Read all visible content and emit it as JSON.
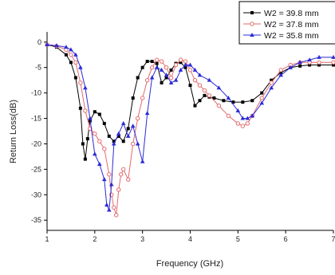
{
  "chart_data": {
    "type": "line",
    "title": "",
    "xlabel": "Frequency (GHz)",
    "ylabel": "Return Loss(dB)",
    "xlim": [
      1,
      7
    ],
    "ylim": [
      -37,
      2
    ],
    "x_ticks": [
      1,
      2,
      3,
      4,
      5,
      6,
      7
    ],
    "x_tick_labels": [
      "1",
      "2",
      "3",
      "4",
      "5",
      "6",
      "7"
    ],
    "y_ticks": [
      0,
      -5,
      -10,
      -15,
      -20,
      -25,
      -30,
      -35
    ],
    "y_tick_labels": [
      "0",
      "-5",
      "-10",
      "-15",
      "-20",
      "-25",
      "-30",
      "-35"
    ],
    "grid": false,
    "legend_position": "top-right",
    "series": [
      {
        "name": "W2 = 39.8 mm",
        "color": "#000000",
        "marker": "square-filled",
        "x": [
          1.0,
          1.2,
          1.4,
          1.5,
          1.6,
          1.7,
          1.75,
          1.8,
          1.85,
          1.9,
          2.0,
          2.1,
          2.2,
          2.3,
          2.4,
          2.5,
          2.6,
          2.7,
          2.8,
          2.9,
          3.0,
          3.1,
          3.2,
          3.3,
          3.4,
          3.5,
          3.6,
          3.7,
          3.8,
          3.9,
          4.0,
          4.1,
          4.2,
          4.3,
          4.4,
          4.5,
          4.7,
          4.9,
          5.1,
          5.3,
          5.5,
          5.7,
          5.9,
          6.1,
          6.3,
          6.5,
          6.7,
          7.0
        ],
        "y": [
          -0.5,
          -1.0,
          -2.5,
          -4.0,
          -7.0,
          -13.0,
          -20.0,
          -23.0,
          -19.0,
          -15.5,
          -13.7,
          -14.2,
          -16.0,
          -18.5,
          -19.5,
          -18.5,
          -19.5,
          -17.0,
          -11.0,
          -7.0,
          -5.0,
          -3.8,
          -3.8,
          -4.2,
          -8.0,
          -7.0,
          -5.5,
          -4.2,
          -4.0,
          -5.0,
          -8.5,
          -12.5,
          -11.5,
          -10.5,
          -10.8,
          -11.0,
          -11.5,
          -11.8,
          -11.8,
          -11.5,
          -10.0,
          -7.5,
          -6.0,
          -5.0,
          -4.7,
          -4.5,
          -4.5,
          -4.5
        ]
      },
      {
        "name": "W2 = 37.8 mm",
        "color": "#e36b6b",
        "marker": "circle-open",
        "x": [
          1.0,
          1.2,
          1.4,
          1.5,
          1.6,
          1.7,
          1.8,
          1.9,
          2.0,
          2.1,
          2.2,
          2.3,
          2.35,
          2.4,
          2.45,
          2.5,
          2.55,
          2.6,
          2.7,
          2.8,
          2.9,
          3.0,
          3.1,
          3.2,
          3.3,
          3.4,
          3.5,
          3.6,
          3.7,
          3.8,
          3.9,
          4.0,
          4.1,
          4.2,
          4.3,
          4.4,
          4.6,
          4.8,
          5.0,
          5.1,
          5.2,
          5.3,
          5.5,
          5.7,
          5.9,
          6.1,
          6.3,
          6.5,
          6.7,
          7.0
        ],
        "y": [
          -0.5,
          -0.8,
          -1.5,
          -2.5,
          -4.0,
          -8.0,
          -13.5,
          -17.0,
          -18.0,
          -19.5,
          -21.0,
          -26.0,
          -30.0,
          -32.5,
          -34.0,
          -29.0,
          -26.0,
          -25.0,
          -27.0,
          -20.0,
          -15.0,
          -11.0,
          -7.5,
          -5.0,
          -3.5,
          -3.8,
          -5.0,
          -7.0,
          -4.5,
          -3.5,
          -3.8,
          -5.5,
          -7.5,
          -8.5,
          -9.5,
          -10.5,
          -12.5,
          -14.5,
          -16.0,
          -16.5,
          -16.0,
          -14.5,
          -11.0,
          -8.0,
          -5.5,
          -4.5,
          -4.0,
          -4.0,
          -4.0,
          -4.0
        ]
      },
      {
        "name": "W2 = 35.8 mm",
        "color": "#2b2bd6",
        "marker": "triangle-filled",
        "x": [
          1.0,
          1.2,
          1.4,
          1.5,
          1.6,
          1.7,
          1.8,
          1.9,
          2.0,
          2.1,
          2.2,
          2.25,
          2.3,
          2.35,
          2.4,
          2.5,
          2.6,
          2.7,
          2.8,
          2.9,
          3.0,
          3.1,
          3.2,
          3.3,
          3.4,
          3.5,
          3.6,
          3.7,
          3.8,
          3.9,
          4.0,
          4.1,
          4.2,
          4.4,
          4.6,
          4.8,
          5.0,
          5.1,
          5.2,
          5.3,
          5.5,
          5.7,
          5.9,
          6.1,
          6.3,
          6.5,
          6.7,
          7.0
        ],
        "y": [
          -0.5,
          -0.7,
          -1.0,
          -1.5,
          -2.5,
          -5.0,
          -9.0,
          -15.0,
          -22.0,
          -24.0,
          -27.0,
          -32.0,
          -33.0,
          -28.0,
          -20.0,
          -18.0,
          -16.0,
          -18.5,
          -16.5,
          -20.0,
          -23.5,
          -14.0,
          -7.0,
          -5.0,
          -5.5,
          -6.5,
          -8.0,
          -7.5,
          -5.5,
          -4.5,
          -4.5,
          -5.5,
          -6.5,
          -7.5,
          -9.0,
          -11.0,
          -13.5,
          -15.0,
          -15.0,
          -14.5,
          -12.0,
          -9.0,
          -6.5,
          -5.0,
          -4.0,
          -3.5,
          -3.0,
          -3.0
        ]
      }
    ]
  }
}
